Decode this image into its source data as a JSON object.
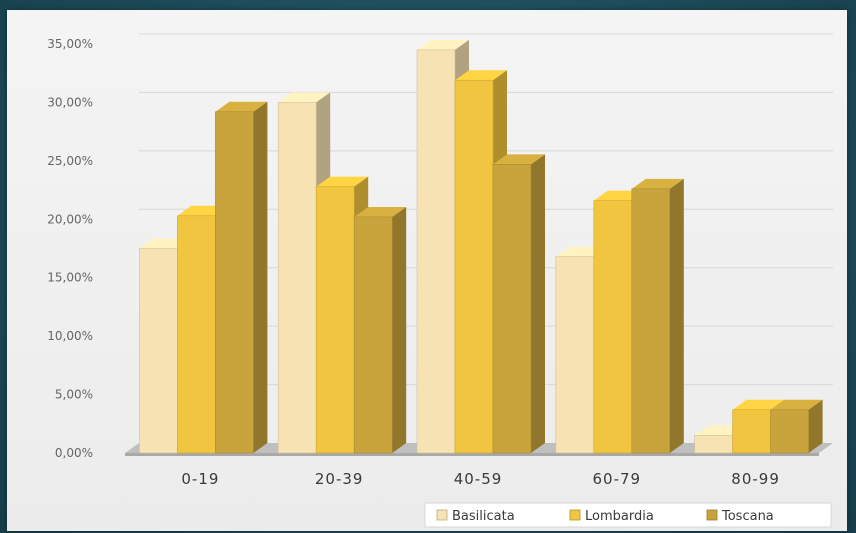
{
  "chart_data": {
    "type": "bar",
    "categories": [
      "0-19",
      "20-39",
      "40-59",
      "60-79",
      "80-99"
    ],
    "series": [
      {
        "name": "Basilicata",
        "values": [
          17.5,
          30.0,
          34.5,
          16.8,
          1.5
        ],
        "color": "#f6e2b3"
      },
      {
        "name": "Lombardia",
        "values": [
          20.3,
          22.8,
          31.9,
          21.6,
          3.7
        ],
        "color": "#f1c53f"
      },
      {
        "name": "Toscana",
        "values": [
          29.2,
          20.2,
          24.7,
          22.6,
          3.7
        ],
        "color": "#c9a43c"
      }
    ],
    "y_ticks": [
      "0,00%",
      "5,00%",
      "10,00%",
      "15,00%",
      "20,00%",
      "25,00%",
      "30,00%",
      "35,00%"
    ],
    "ylim": [
      0,
      35
    ],
    "grid": true,
    "legend_position": "bottom-right",
    "title": "",
    "xlabel": "",
    "ylabel": ""
  }
}
